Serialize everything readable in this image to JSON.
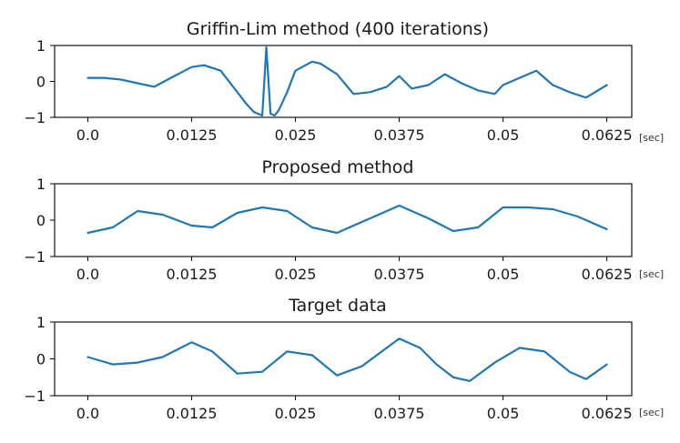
{
  "chart_data": [
    {
      "type": "line",
      "title": "Griffin-Lim method (400 iterations)",
      "xlabel": "[sec]",
      "ylabel": "",
      "xlim": [
        -0.004,
        0.0655
      ],
      "ylim": [
        -1,
        1
      ],
      "xticks": [
        0.0,
        0.0125,
        0.025,
        0.0375,
        0.05,
        0.0625
      ],
      "xtick_labels": [
        "0.0",
        "0.0125",
        "0.025",
        "0.0375",
        "0.05",
        "0.0625"
      ],
      "yticks": [
        1,
        0,
        -1
      ],
      "ytick_labels": [
        "1",
        "0",
        "−1"
      ],
      "color": "#1f77b4",
      "series": [
        {
          "x": [
            0.0,
            0.002,
            0.004,
            0.006,
            0.008,
            0.01,
            0.0125,
            0.014,
            0.016,
            0.018,
            0.019,
            0.02,
            0.021,
            0.0215,
            0.022,
            0.0225,
            0.023,
            0.024,
            0.025,
            0.027,
            0.028,
            0.03,
            0.032,
            0.034,
            0.036,
            0.0375,
            0.039,
            0.041,
            0.043,
            0.045,
            0.047,
            0.049,
            0.05,
            0.052,
            0.054,
            0.056,
            0.058,
            0.06,
            0.0625
          ],
          "y": [
            0.1,
            0.1,
            0.05,
            -0.05,
            -0.15,
            0.1,
            0.4,
            0.45,
            0.3,
            -0.3,
            -0.6,
            -0.85,
            -0.95,
            0.95,
            -0.9,
            -0.95,
            -0.8,
            -0.3,
            0.3,
            0.55,
            0.5,
            0.2,
            -0.35,
            -0.3,
            -0.15,
            0.15,
            -0.2,
            -0.1,
            0.2,
            -0.05,
            -0.25,
            -0.35,
            -0.1,
            0.1,
            0.3,
            -0.1,
            -0.3,
            -0.45,
            -0.1
          ]
        }
      ]
    },
    {
      "type": "line",
      "title": "Proposed method",
      "xlabel": "[sec]",
      "ylabel": "",
      "xlim": [
        -0.004,
        0.0655
      ],
      "ylim": [
        -1,
        1
      ],
      "xticks": [
        0.0,
        0.0125,
        0.025,
        0.0375,
        0.05,
        0.0625
      ],
      "xtick_labels": [
        "0.0",
        "0.0125",
        "0.025",
        "0.0375",
        "0.05",
        "0.0625"
      ],
      "yticks": [
        1,
        0,
        -1
      ],
      "ytick_labels": [
        "1",
        "0",
        "−1"
      ],
      "color": "#1f77b4",
      "series": [
        {
          "x": [
            0.0,
            0.003,
            0.006,
            0.009,
            0.0125,
            0.015,
            0.018,
            0.021,
            0.024,
            0.027,
            0.03,
            0.033,
            0.0375,
            0.041,
            0.044,
            0.047,
            0.05,
            0.053,
            0.056,
            0.059,
            0.0625
          ],
          "y": [
            -0.35,
            -0.2,
            0.25,
            0.15,
            -0.15,
            -0.2,
            0.2,
            0.35,
            0.25,
            -0.2,
            -0.35,
            -0.05,
            0.4,
            0.05,
            -0.3,
            -0.2,
            0.35,
            0.35,
            0.3,
            0.1,
            -0.25
          ]
        }
      ]
    },
    {
      "type": "line",
      "title": "Target data",
      "xlabel": "[sec]",
      "ylabel": "",
      "xlim": [
        -0.004,
        0.0655
      ],
      "ylim": [
        -1,
        1
      ],
      "xticks": [
        0.0,
        0.0125,
        0.025,
        0.0375,
        0.05,
        0.0625
      ],
      "xtick_labels": [
        "0.0",
        "0.0125",
        "0.025",
        "0.0375",
        "0.05",
        "0.0625"
      ],
      "yticks": [
        1,
        0,
        -1
      ],
      "ytick_labels": [
        "1",
        "0",
        "−1"
      ],
      "color": "#1f77b4",
      "series": [
        {
          "x": [
            0.0,
            0.003,
            0.006,
            0.009,
            0.0125,
            0.015,
            0.018,
            0.021,
            0.024,
            0.027,
            0.03,
            0.033,
            0.0375,
            0.04,
            0.042,
            0.044,
            0.046,
            0.049,
            0.052,
            0.055,
            0.058,
            0.06,
            0.0625
          ],
          "y": [
            0.05,
            -0.15,
            -0.1,
            0.05,
            0.45,
            0.2,
            -0.4,
            -0.35,
            0.2,
            0.1,
            -0.45,
            -0.2,
            0.55,
            0.3,
            -0.15,
            -0.5,
            -0.6,
            -0.1,
            0.3,
            0.2,
            -0.35,
            -0.55,
            -0.15
          ]
        }
      ]
    }
  ]
}
